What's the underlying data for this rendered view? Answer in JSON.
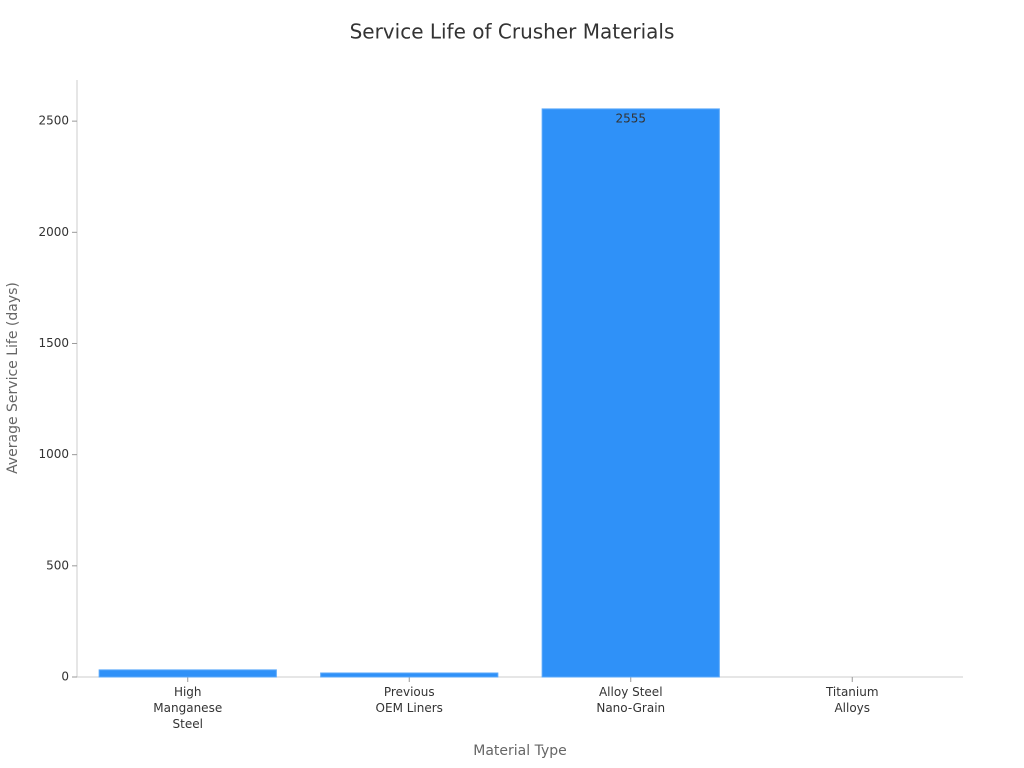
{
  "chart_data": {
    "type": "bar",
    "title": "Service Life of Crusher Materials",
    "x_label": "Material Type",
    "y_label": "Average Service Life (days)",
    "categories": [
      "High\nManganese\nSteel",
      "Previous\nOEM Liners",
      "Alloy Steel\nNano-Grain",
      "Titanium\nAlloys"
    ],
    "values": [
      32,
      18,
      2555,
      0
    ],
    "color": "#2f91f8",
    "ylim": [
      0,
      2685
    ],
    "yticks": [
      0,
      500,
      1000,
      1500,
      2000,
      2500
    ],
    "grid": false
  }
}
